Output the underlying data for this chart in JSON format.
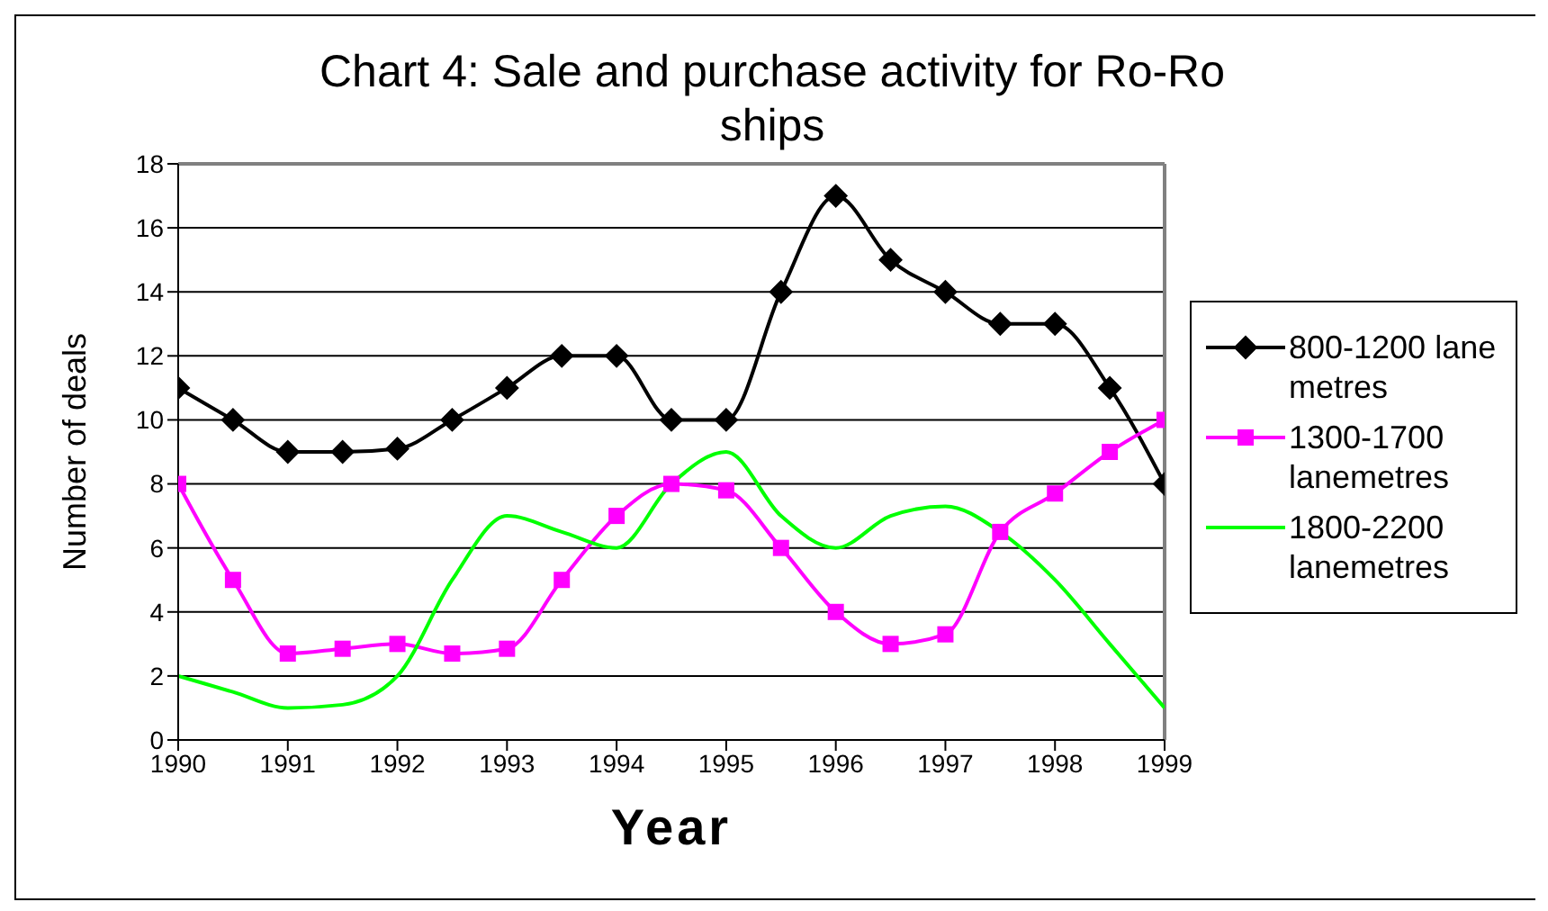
{
  "chart_data": {
    "type": "line",
    "title": "Chart 4: Sale and purchase activity for Ro-Ro ships",
    "xlabel": "Year",
    "ylabel": "Number of deals",
    "x": [
      1990,
      1990.5,
      1991,
      1991.5,
      1992,
      1992.5,
      1993,
      1993.5,
      1994,
      1994.5,
      1995,
      1995.5,
      1996,
      1996.5,
      1997,
      1997.5,
      1998,
      1998.5,
      1999
    ],
    "series": [
      {
        "name": "800-1200 lane metres",
        "color": "#000000",
        "marker": "diamond",
        "values": [
          11,
          10,
          9,
          9,
          9.1,
          10,
          11,
          12,
          12,
          10,
          10,
          14,
          17,
          15,
          14,
          13,
          13,
          11,
          8
        ]
      },
      {
        "name": "1300-1700 lanemetres",
        "color": "#ff00ff",
        "marker": "square",
        "values": [
          8,
          5,
          2.7,
          2.85,
          3,
          2.7,
          2.85,
          5,
          7,
          8,
          7.8,
          6,
          4,
          3,
          3.3,
          6.5,
          7.7,
          9,
          10
        ]
      },
      {
        "name": "1800-2200 lanemetres",
        "color": "#00ff00",
        "marker": "none",
        "values": [
          2,
          1.5,
          1,
          1.1,
          2,
          5,
          7,
          6.5,
          6,
          8,
          9,
          7,
          6,
          7,
          7.3,
          6.5,
          5,
          3,
          1
        ]
      }
    ],
    "xlim": [
      1990,
      1999
    ],
    "xticks": [
      1990,
      1991,
      1992,
      1993,
      1994,
      1995,
      1996,
      1997,
      1998,
      1999
    ],
    "ylim": [
      0,
      18
    ],
    "yticks": [
      0,
      2,
      4,
      6,
      8,
      10,
      12,
      14,
      16,
      18
    ],
    "grid": "y",
    "legend": "right"
  }
}
